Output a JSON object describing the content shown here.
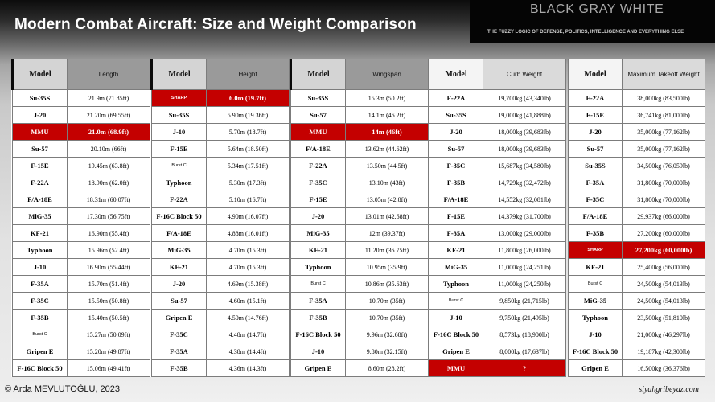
{
  "header": {
    "title": "Modern Combat Aircraft: Size and Weight Comparison",
    "brand_name": "BLACK GRAY WHITE",
    "brand_tagline": "THE FUZZY LOGIC OF DEFENSE, POLITICS, INTELLIGENCE AND EVERYTHING ELSE"
  },
  "model_header": "Model",
  "panels": [
    {
      "metric": "Length",
      "rows": [
        {
          "model": "Su-35S",
          "value": "21.9m  (71.85ft)"
        },
        {
          "model": "J-20",
          "value": "21.20m  (69.55ft)"
        },
        {
          "model": "MMU",
          "value": "21.0m (68.9ft)",
          "highlight": true
        },
        {
          "model": "Su-57",
          "value": "20.10m  (66ft)"
        },
        {
          "model": "F-15E",
          "value": "19.45m  (63.8ft)"
        },
        {
          "model": "F-22A",
          "value": "18.90m  (62.0ft)"
        },
        {
          "model": "F/A-18E",
          "value": "18.31m  (60.07ft)"
        },
        {
          "model": "MiG-35",
          "value": "17.30m  (56.75ft)"
        },
        {
          "model": "KF-21",
          "value": "16.90m  (55.4ft)"
        },
        {
          "model": "Typhoon",
          "value": "15.96m  (52.4ft)"
        },
        {
          "model": "J-10",
          "value": "16.90m  (55.44ft)"
        },
        {
          "model": "F-35A",
          "value": "15.70m  (51.4ft)"
        },
        {
          "model": "F-35C",
          "value": "15.50m  (50.8ft)"
        },
        {
          "model": "F-35B",
          "value": "15.40m  (50.5ft)"
        },
        {
          "model": "Burst C",
          "value": "15.27m  (50.09ft)",
          "small": true
        },
        {
          "model": "Gripen E",
          "value": "15.20m  (49.87ft)"
        },
        {
          "model": "F-16C Block 50",
          "value": "15.06m  (49.41ft)"
        }
      ]
    },
    {
      "metric": "Height",
      "rows": [
        {
          "model": "SHARP",
          "value": "6.0m (19.7ft)",
          "highlight": true,
          "small": true
        },
        {
          "model": "Su-35S",
          "value": "5.90m  (19.36ft)"
        },
        {
          "model": "J-10",
          "value": "5.70m  (18.7ft)"
        },
        {
          "model": "F-15E",
          "value": "5.64m  (18.50ft)"
        },
        {
          "model": "Burst C",
          "value": "5.34m  (17.51ft)",
          "small": true
        },
        {
          "model": "Typhoon",
          "value": "5.30m  (17.3ft)"
        },
        {
          "model": "F-22A",
          "value": "5.10m  (16.7ft)"
        },
        {
          "model": "F-16C Block 50",
          "value": "4.90m  (16.07ft)"
        },
        {
          "model": "F/A-18E",
          "value": "4.88m  (16.01ft)"
        },
        {
          "model": "MiG-35",
          "value": "4.70m  (15.3ft)"
        },
        {
          "model": "KF-21",
          "value": "4.70m  (15.3ft)"
        },
        {
          "model": "J-20",
          "value": "4.69m  (15.38ft)"
        },
        {
          "model": "Su-57",
          "value": "4.60m  (15.1ft)"
        },
        {
          "model": "Gripen E",
          "value": "4.50m  (14.76ft)"
        },
        {
          "model": "F-35C",
          "value": "4.48m  (14.7ft)"
        },
        {
          "model": "F-35A",
          "value": "4.38m  (14.4ft)"
        },
        {
          "model": "F-35B",
          "value": "4.36m  (14.3ft)"
        }
      ]
    },
    {
      "metric": "Wingspan",
      "rows": [
        {
          "model": "Su-35S",
          "value": "15.3m  (50.2ft)"
        },
        {
          "model": "Su-57",
          "value": "14.1m  (46.2ft)"
        },
        {
          "model": "MMU",
          "value": "14m (46ft)",
          "highlight": true
        },
        {
          "model": "F/A-18E",
          "value": "13.62m  (44.62ft)"
        },
        {
          "model": "F-22A",
          "value": "13.50m  (44.5ft)"
        },
        {
          "model": "F-35C",
          "value": "13.10m  (43ft)"
        },
        {
          "model": "F-15E",
          "value": "13.05m  (42.8ft)"
        },
        {
          "model": "J-20",
          "value": "13.01m  (42.68ft)"
        },
        {
          "model": "MiG-35",
          "value": "12m  (39.37ft)"
        },
        {
          "model": "KF-21",
          "value": "11.20m  (36.75ft)"
        },
        {
          "model": "Typhoon",
          "value": "10.95m  (35.9ft)"
        },
        {
          "model": "Burst C",
          "value": "10.86m  (35.63ft)",
          "small": true
        },
        {
          "model": "F-35A",
          "value": "10.70m  (35ft)"
        },
        {
          "model": "F-35B",
          "value": "10.70m  (35ft)"
        },
        {
          "model": "F-16C Block 50",
          "value": "9.96m  (32.68ft)"
        },
        {
          "model": "J-10",
          "value": "9.80m  (32.15ft)"
        },
        {
          "model": "Gripen E",
          "value": "8.60m  (28.2ft)"
        }
      ]
    },
    {
      "metric": "Curb Weight",
      "rows": [
        {
          "model": "F-22A",
          "value": "19,700kg  (43,340lb)"
        },
        {
          "model": "Su-35S",
          "value": "19,000kg  (41,888lb)"
        },
        {
          "model": "J-20",
          "value": "18,000kg  (39,683lb)"
        },
        {
          "model": "Su-57",
          "value": "18,000kg  (39,683lb)"
        },
        {
          "model": "F-35C",
          "value": "15,687kg  (34,580lb)"
        },
        {
          "model": "F-35B",
          "value": "14,729kg  (32,472lb)"
        },
        {
          "model": "F/A-18E",
          "value": "14,552kg  (32,081lb)"
        },
        {
          "model": "F-15E",
          "value": "14,379kg  (31,700lb)"
        },
        {
          "model": "F-35A",
          "value": "13,000kg  (29,000lb)"
        },
        {
          "model": "KF-21",
          "value": "11,800kg  (26,000lb)"
        },
        {
          "model": "MiG-35",
          "value": "11,000kg  (24,251lb)"
        },
        {
          "model": "Typhoon",
          "value": "11,000kg  (24,250lb)"
        },
        {
          "model": "Burst C",
          "value": "9,850kg  (21,715lb)",
          "small": true
        },
        {
          "model": "J-10",
          "value": "9,750kg  (21,495lb)"
        },
        {
          "model": "F-16C Block 50",
          "value": "8,573kg  (18,900lb)"
        },
        {
          "model": "Gripen E",
          "value": "8,000kg  (17,637lb)"
        },
        {
          "model": "MMU",
          "value": "?",
          "highlight": true
        }
      ]
    },
    {
      "metric": "Maximum Takeoff Weight",
      "rows": [
        {
          "model": "F-22A",
          "value": "38,000kg  (83,500lb)"
        },
        {
          "model": "F-15E",
          "value": "36,741kg  (81,000lb)"
        },
        {
          "model": "J-20",
          "value": "35,000kg  (77,162lb)"
        },
        {
          "model": "Su-57",
          "value": "35,000kg  (77,162lb)"
        },
        {
          "model": "Su-35S",
          "value": "34,500kg  (76,059lb)"
        },
        {
          "model": "F-35A",
          "value": "31,800kg  (70,000lb)"
        },
        {
          "model": "F-35C",
          "value": "31,800kg  (70,000lb)"
        },
        {
          "model": "F/A-18E",
          "value": "29,937kg  (66,000lb)"
        },
        {
          "model": "F-35B",
          "value": "27,200kg  (60,000lb)"
        },
        {
          "model": "SHARP",
          "value": "27,200kg (60,000lb)",
          "highlight": true,
          "small": true
        },
        {
          "model": "KF-21",
          "value": "25,400kg  (56,000lb)"
        },
        {
          "model": "Burst C",
          "value": "24,500kg  (54,013lb)",
          "small": true
        },
        {
          "model": "MiG-35",
          "value": "24,500kg  (54,013lb)"
        },
        {
          "model": "Typhoon",
          "value": "23,500kg  (51,810lb)"
        },
        {
          "model": "J-10",
          "value": "21,000kg  (46,297lb)"
        },
        {
          "model": "F-16C Block 50",
          "value": "19,187kg  (42,300lb)"
        },
        {
          "model": "Gripen E",
          "value": "16,500kg  (36,376lb)"
        }
      ]
    }
  ],
  "footer": {
    "copyright": "© Arda MEVLUTOĞLU, 2023",
    "website": "siyahgribeyaz.com"
  }
}
